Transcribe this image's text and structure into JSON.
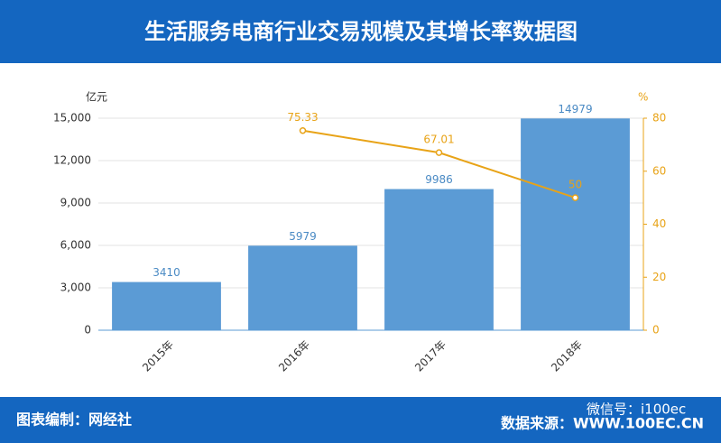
{
  "chart_data": {
    "type": "bar",
    "title": "生活服务电商行业交易规模及其增长率数据图",
    "y_axis_label": "亿元",
    "y2_axis_label": "%",
    "categories": [
      "2015年",
      "2016年",
      "2017年",
      "2018年"
    ],
    "series": [
      {
        "type": "bar",
        "color": "#5b9bd5",
        "values": [
          3410,
          5979,
          9986,
          14979
        ]
      },
      {
        "type": "line",
        "axis": "y2",
        "color": "#e8a317",
        "values": [
          null,
          75.33,
          67.01,
          50
        ]
      }
    ],
    "ylim": [
      0,
      15000
    ],
    "yticks": [
      0,
      {
        "value": 3000,
        "label": "3,000"
      },
      {
        "value": 6000,
        "label": "6,000"
      },
      {
        "value": 9000,
        "label": "9,000"
      },
      {
        "value": 12000,
        "label": "12,000"
      },
      {
        "value": 15000,
        "label": "15,000"
      }
    ],
    "y2lim": [
      0,
      80
    ],
    "y2ticks": [
      0,
      20,
      40,
      60,
      80
    ],
    "grid": true
  },
  "footer": {
    "credit": "图表编制：网经社",
    "wechat": "微信号：i100ec",
    "source": "数据来源：WWW.100EC.CN"
  }
}
